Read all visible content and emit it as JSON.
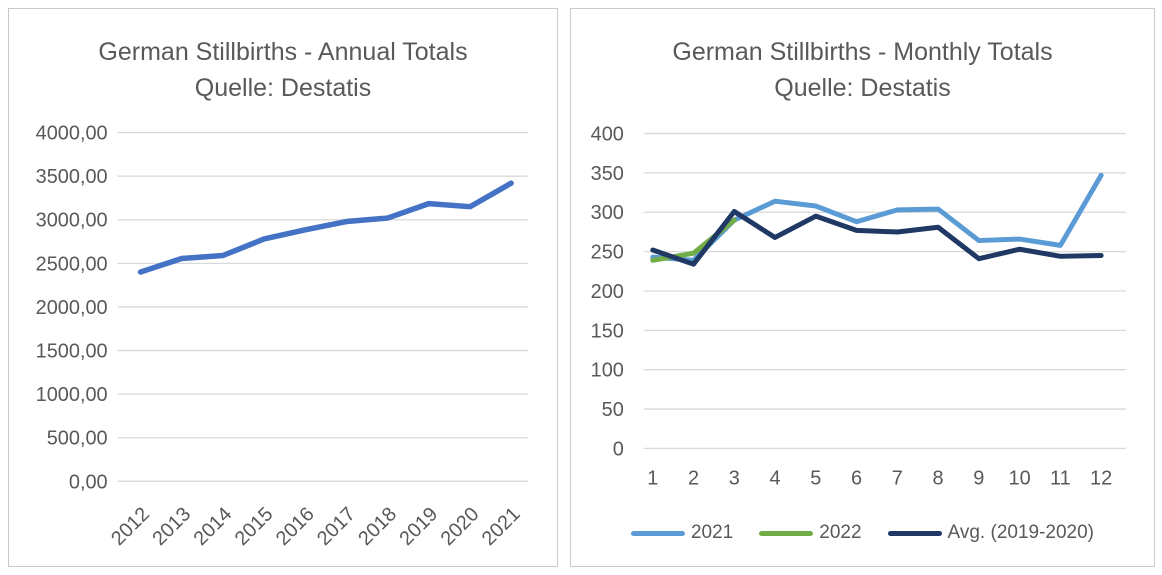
{
  "theme": {
    "background": "#FFFFFF",
    "panel_border_color": "#C9C9C9",
    "grid_color": "#D9D9D9",
    "text_color": "#595959"
  },
  "chart_data": [
    {
      "id": "annual",
      "type": "line",
      "title": "German Stillbirths - Annual Totals",
      "subtitle": "Quelle: Destatis",
      "categories": [
        "2012",
        "2013",
        "2014",
        "2015",
        "2016",
        "2017",
        "2018",
        "2019",
        "2020",
        "2021"
      ],
      "series": [
        {
          "name": "Annual Totals",
          "color": "#4472C4",
          "values": [
            2400,
            2555,
            2590,
            2780,
            2885,
            2980,
            3020,
            3185,
            3150,
            3420
          ]
        }
      ],
      "ylim": [
        0,
        4000
      ],
      "ytick_step": 500,
      "ytick_labels": [
        "0,00",
        "500,00",
        "1000,00",
        "1500,00",
        "2000,00",
        "2500,00",
        "3000,00",
        "3500,00",
        "4000,00"
      ],
      "xlabel_rotation": -45,
      "grid": true,
      "legend_position": "none"
    },
    {
      "id": "monthly",
      "type": "line",
      "title": "German Stillbirths - Monthly Totals",
      "subtitle": "Quelle: Destatis",
      "categories": [
        "1",
        "2",
        "3",
        "4",
        "5",
        "6",
        "7",
        "8",
        "9",
        "10",
        "11",
        "12"
      ],
      "series": [
        {
          "name": "2021",
          "color": "#5B9BD5",
          "values": [
            243,
            239,
            290,
            314,
            308,
            288,
            303,
            304,
            264,
            266,
            258,
            347
          ]
        },
        {
          "name": "2022",
          "color": "#70AD47",
          "values": [
            239,
            248,
            290
          ]
        },
        {
          "name": "Avg. (2019-2020)",
          "color": "#1F3864",
          "values": [
            252,
            234,
            301,
            268,
            295,
            277,
            275,
            281,
            241,
            253,
            244,
            245
          ]
        }
      ],
      "ylim": [
        0,
        400
      ],
      "ytick_step": 50,
      "ytick_labels": [
        "0",
        "50",
        "100",
        "150",
        "200",
        "250",
        "300",
        "350",
        "400"
      ],
      "xlabel_rotation": 0,
      "grid": true,
      "legend_position": "bottom"
    }
  ]
}
